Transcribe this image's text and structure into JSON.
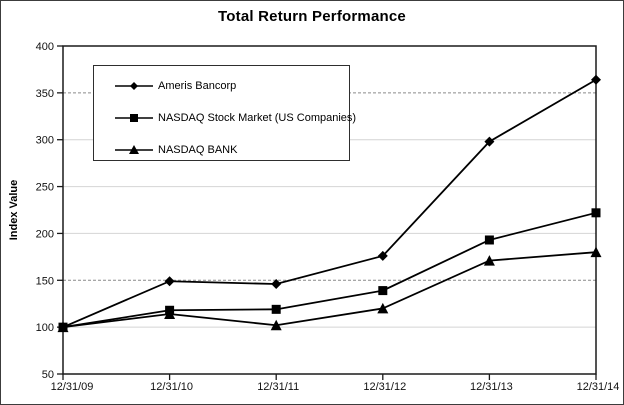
{
  "title": "Total Return Performance",
  "chart_data": {
    "type": "line",
    "title": "Total Return Performance",
    "xlabel": "",
    "ylabel": "Index Value",
    "categories": [
      "12/31/09",
      "12/31/10",
      "12/31/11",
      "12/31/12",
      "12/31/13",
      "12/31/14"
    ],
    "series": [
      {
        "name": "Ameris Bancorp",
        "marker": "diamond",
        "values": [
          100,
          149,
          146,
          176,
          298,
          364
        ]
      },
      {
        "name": "NASDAQ Stock Market (US Companies)",
        "marker": "square",
        "values": [
          100,
          118,
          119,
          139,
          193,
          222
        ]
      },
      {
        "name": "NASDAQ BANK",
        "marker": "triangle",
        "values": [
          100,
          114,
          102,
          120,
          171,
          180
        ]
      }
    ],
    "ylim": [
      50,
      400
    ],
    "yticks": [
      50,
      100,
      150,
      200,
      250,
      300,
      350,
      400
    ],
    "grid": true,
    "legend_position": "upper-left-inside",
    "colors": {
      "line": "#000000",
      "grid_light": "#d4d4d4",
      "grid_dashed": "#8a8a8a",
      "frame": "#1a1a1a",
      "tick_label": "#111111"
    }
  }
}
